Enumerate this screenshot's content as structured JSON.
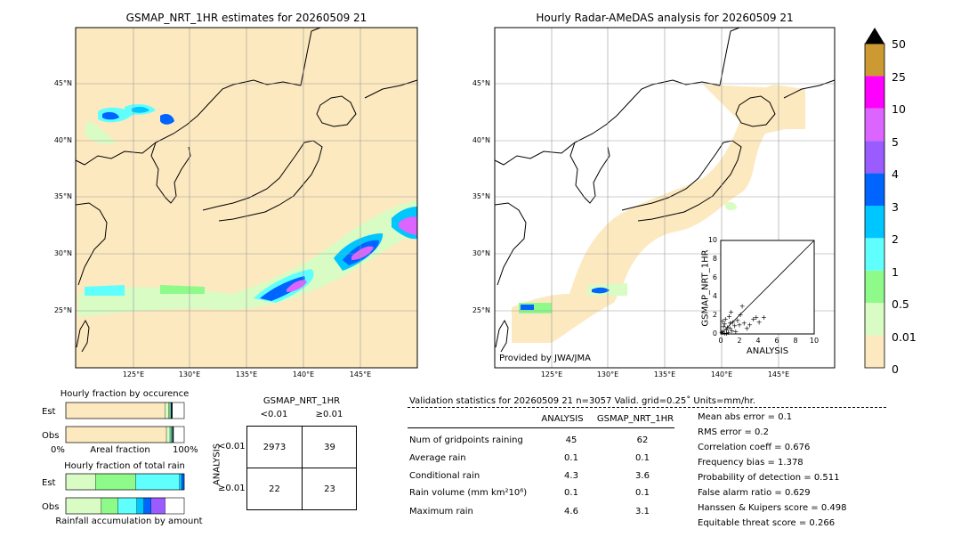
{
  "colors": {
    "land": "#fde9c0",
    "sea": "#ffffff",
    "grid": "#999999",
    "scale": [
      "#fde9c0",
      "#d8fcc4",
      "#8efa8a",
      "#5ffffd",
      "#00c6ff",
      "#0064ff",
      "#9a5cff",
      "#dc64ff",
      "#ff00ff",
      "#cc9933"
    ]
  },
  "chart_data": [
    {
      "type": "heatmap",
      "title": "GSMAP_NRT_1HR estimates for 20260509 21",
      "lon_ticks": [
        "125°E",
        "130°E",
        "135°E",
        "140°E",
        "145°E"
      ],
      "lat_ticks": [
        "45°N",
        "40°N",
        "35°N",
        "30°N",
        "25°N"
      ]
    },
    {
      "type": "heatmap",
      "title": "Hourly Radar-AMeDAS analysis for 20260509 21",
      "lon_ticks": [
        "125°E",
        "130°E",
        "135°E",
        "140°E",
        "145°E"
      ],
      "lat_ticks": [
        "45°N",
        "40°N",
        "35°N",
        "30°N",
        "25°N"
      ],
      "credit": "Provided by JWA/JMA"
    },
    {
      "type": "scatter",
      "xlabel": "ANALYSIS",
      "ylabel": "GSMAP_NRT_1HR",
      "xlim": [
        0,
        10
      ],
      "ylim": [
        0,
        10
      ],
      "x_ticks": [
        "0",
        "2",
        "4",
        "6",
        "8",
        "10"
      ],
      "y_ticks": [
        "0",
        "2",
        "4",
        "6",
        "8",
        "10"
      ],
      "points": [
        [
          0.2,
          0.3
        ],
        [
          0.4,
          0.1
        ],
        [
          0.6,
          0.5
        ],
        [
          0.8,
          0.2
        ],
        [
          1.0,
          1.2
        ],
        [
          0.3,
          0.8
        ],
        [
          1.2,
          0.4
        ],
        [
          0.5,
          1.6
        ],
        [
          1.5,
          0.9
        ],
        [
          0.9,
          1.9
        ],
        [
          2.0,
          1.0
        ],
        [
          1.8,
          1.5
        ],
        [
          0.1,
          0.2
        ],
        [
          0.7,
          0.7
        ],
        [
          2.5,
          1.2
        ],
        [
          3.1,
          1.0
        ],
        [
          3.5,
          1.6
        ],
        [
          4.1,
          1.3
        ],
        [
          3.8,
          1.8
        ],
        [
          4.6,
          1.8
        ],
        [
          1.1,
          2.4
        ],
        [
          2.3,
          3.0
        ],
        [
          0.4,
          1.1
        ],
        [
          1.6,
          0.3
        ],
        [
          2.8,
          0.6
        ],
        [
          0.2,
          1.4
        ],
        [
          1.3,
          1.3
        ],
        [
          2.1,
          2.1
        ],
        [
          0.6,
          0.1
        ],
        [
          1.0,
          0.6
        ]
      ]
    },
    {
      "type": "heatmap",
      "legend_type": "colorbar",
      "ticks": [
        "50",
        "25",
        "10",
        "5",
        "4",
        "3",
        "2",
        "1",
        "0.5",
        "0.01",
        "0"
      ]
    },
    {
      "type": "bar",
      "title": "Hourly fraction by occurence",
      "categories": [
        "Est",
        "Obs"
      ],
      "xlabel": "Areal fraction",
      "x_ticks": [
        "0%",
        "100%"
      ],
      "series": [
        {
          "values": [
            0.84,
            0.85
          ]
        },
        {
          "values": [
            0.03,
            0.03
          ]
        },
        {
          "values": [
            0.01,
            0.01
          ]
        },
        {
          "values": [
            0.01,
            0.01
          ]
        },
        {
          "values": [
            0.01,
            0.01
          ]
        }
      ]
    },
    {
      "type": "bar",
      "title": "Hourly fraction of total rain",
      "categories": [
        "Est",
        "Obs"
      ],
      "xlabel": "Rainfall accumulation by amount",
      "series": [
        {
          "values": [
            0.25,
            0.3
          ]
        },
        {
          "values": [
            0.34,
            0.14
          ]
        },
        {
          "values": [
            0.37,
            0.16
          ]
        },
        {
          "values": [
            0.02,
            0.06
          ]
        },
        {
          "values": [
            0.02,
            0.06
          ]
        },
        {
          "values": [
            0.0,
            0.12
          ]
        }
      ]
    },
    {
      "type": "table",
      "title": "GSMAP_NRT_1HR",
      "col_headers": [
        "<0.01",
        "≥0.01"
      ],
      "row_label": "ANALYSIS",
      "row_headers": [
        "<0.01",
        "≥0.01"
      ],
      "cells": [
        [
          "2973",
          "39"
        ],
        [
          "22",
          "23"
        ]
      ]
    }
  ],
  "validation": {
    "header": "Validation statistics for 20260509 21  n=3057 Valid. grid=0.25˚ Units=mm/hr.",
    "col_analysis": "ANALYSIS",
    "col_gsmap": "GSMAP_NRT_1HR",
    "rows": [
      {
        "label": "Num of gridpoints raining",
        "analysis": "45",
        "gsmap": "62"
      },
      {
        "label": "Average rain",
        "analysis": "0.1",
        "gsmap": "0.1"
      },
      {
        "label": "Conditional rain",
        "analysis": "4.3",
        "gsmap": "3.6"
      },
      {
        "label": "Rain volume (mm km²10⁶)",
        "analysis": "0.1",
        "gsmap": "0.1"
      },
      {
        "label": "Maximum rain",
        "analysis": "4.6",
        "gsmap": "3.1"
      }
    ],
    "scores": [
      "Mean abs error =    0.1",
      "RMS error =    0.2",
      "Correlation coeff =  0.676",
      "Frequency bias =  1.378",
      "Probability of detection =  0.511",
      "False alarm ratio =  0.629",
      "Hanssen & Kuipers score =  0.498",
      "Equitable threat score =  0.266"
    ]
  }
}
